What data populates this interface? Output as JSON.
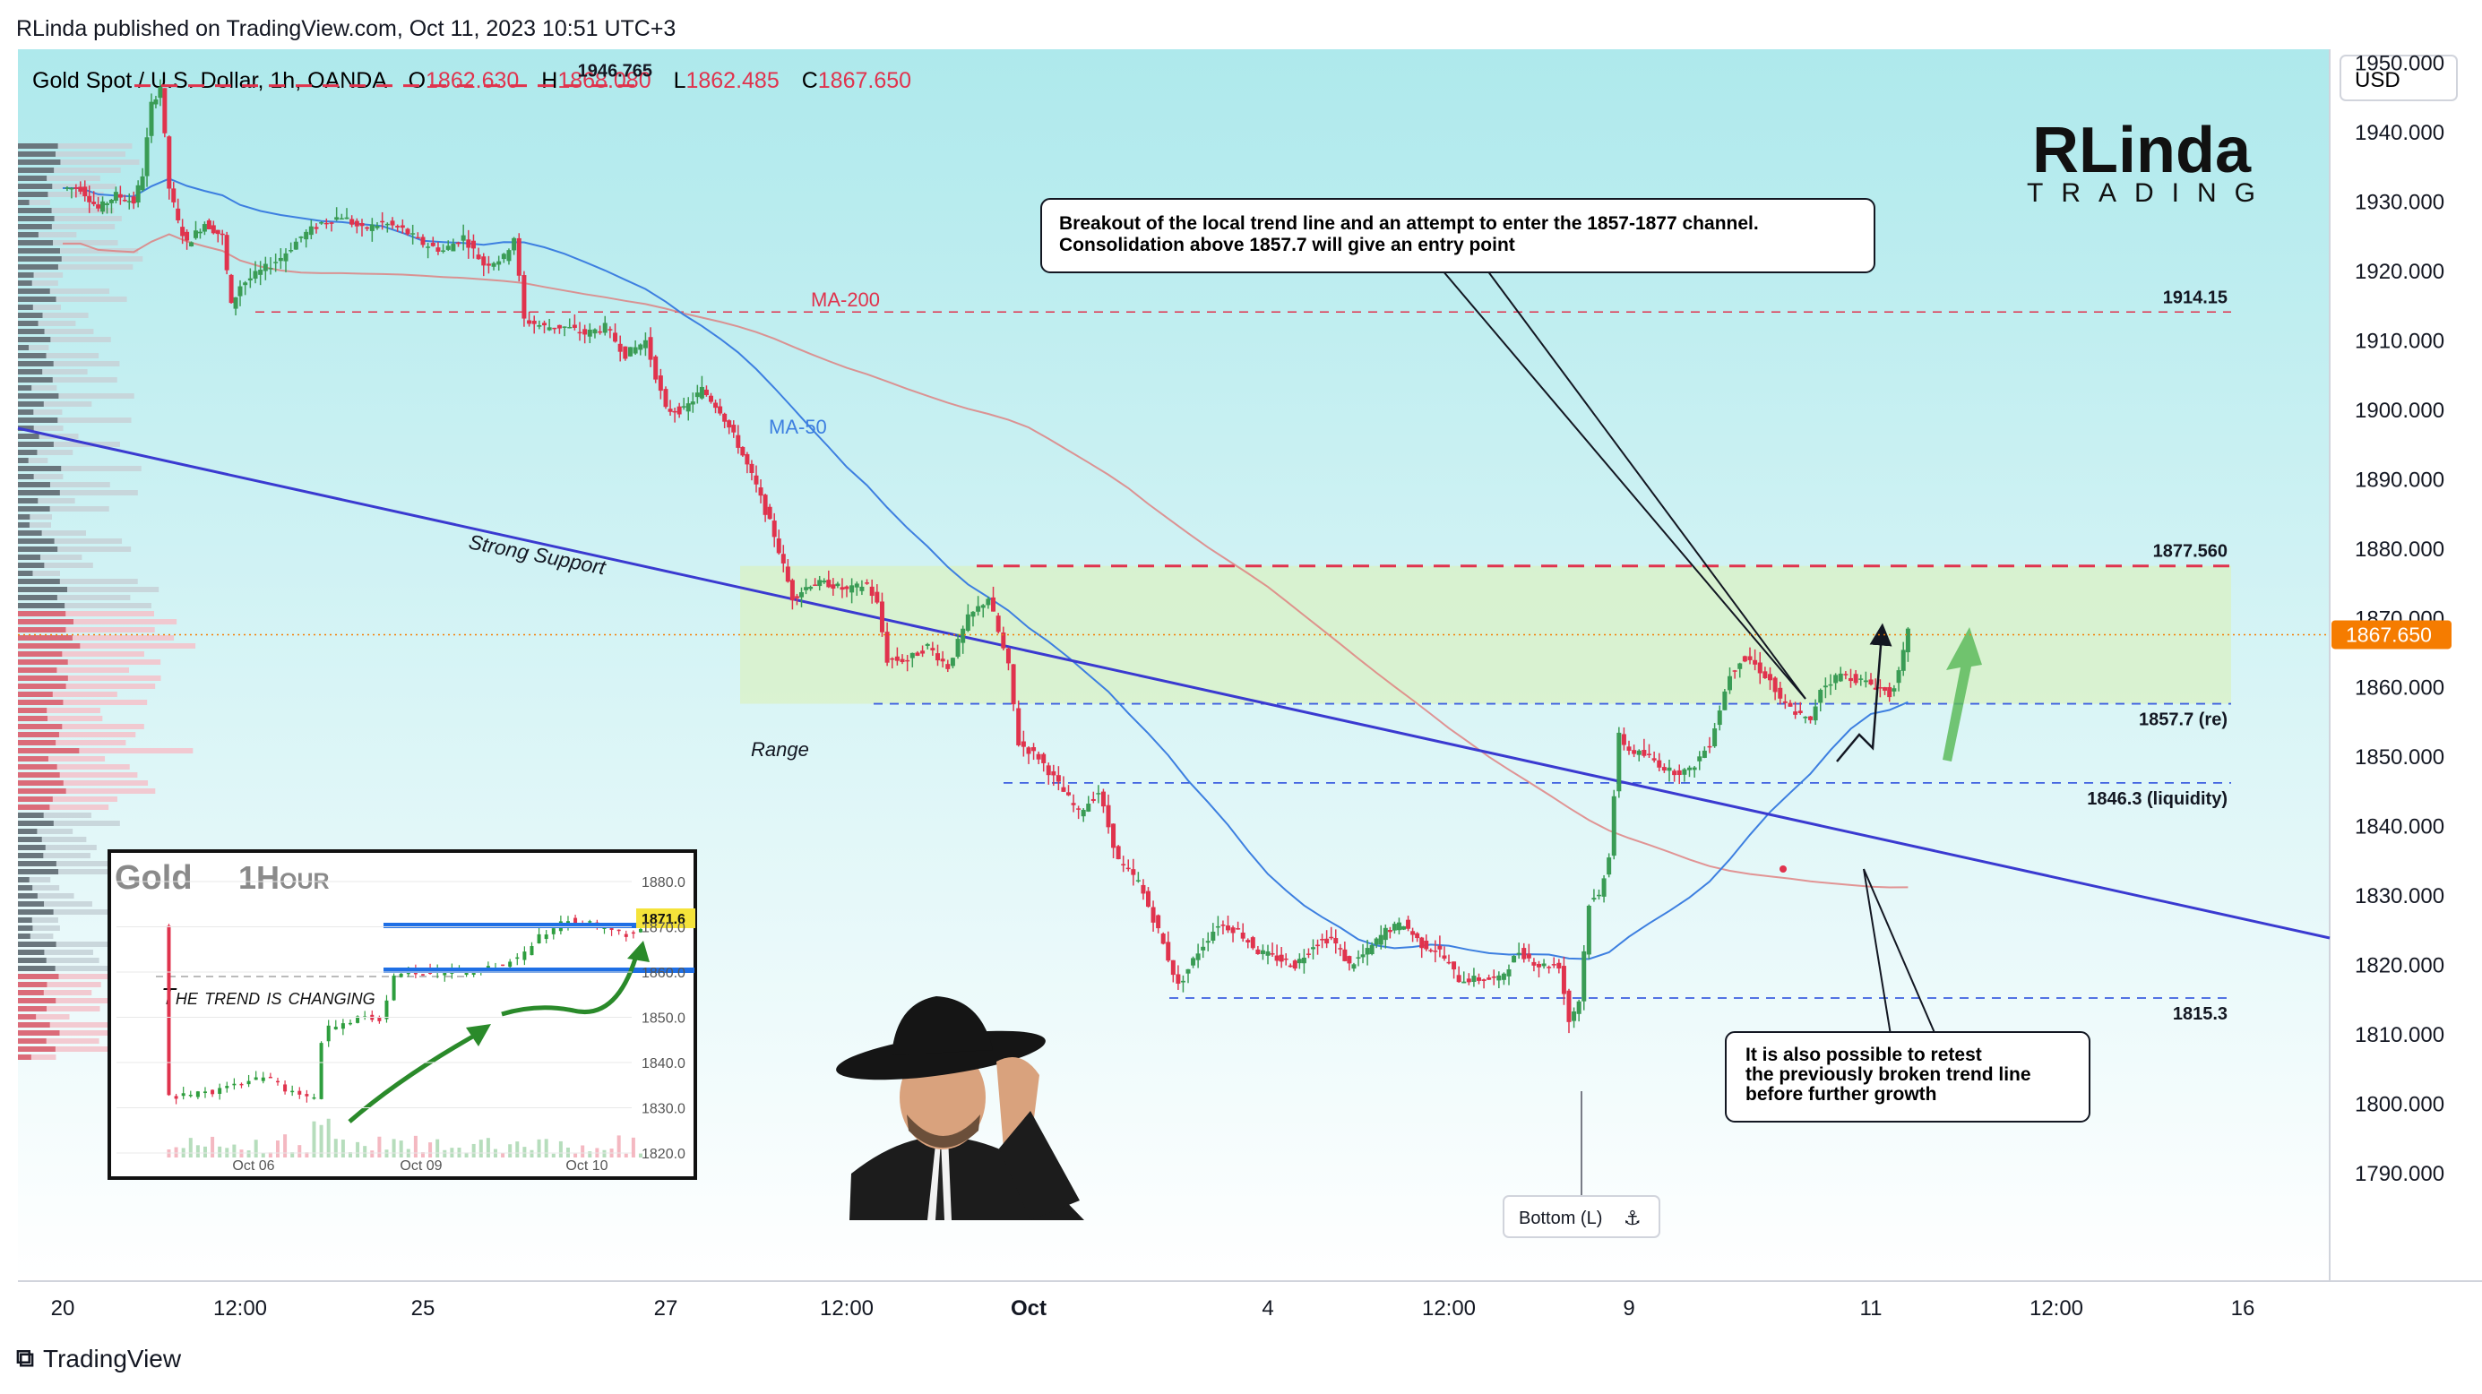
{
  "header": {
    "published": "RLinda published on TradingView.com, Oct 11, 2023 10:51 UTC+3"
  },
  "symbol": {
    "name": "Gold Spot / U.S. Dollar, 1h, OANDA",
    "o_label": "O",
    "o": "1862.630",
    "h_label": "H",
    "h": "1868.080",
    "l_label": "L",
    "l": "1862.485",
    "c_label": "C",
    "c": "1867.650"
  },
  "currency": "USD",
  "brand": {
    "logo_text": "RLinda",
    "logo_sub": "TRADING"
  },
  "footer": {
    "tradingview": "TradingView"
  },
  "colors": {
    "bg_top": "#aee9ec",
    "bg_bottom": "#ffffff",
    "up": "#26a69a",
    "down": "#ef5350",
    "candle_up": "#3a9c55",
    "candle_down": "#e0334d",
    "ma50": "#3d7fe0",
    "ma200": "#e07a7a",
    "trend": "#3a3ad0",
    "price_badge": "#f57c00",
    "range_fill": "#d9f2c4",
    "arrow": "#5dbb5d"
  },
  "chart_data": {
    "type": "candlestick",
    "symbol": "XAUUSD",
    "timeframe": "1h",
    "y_axis": {
      "min": 1785,
      "max": 1955,
      "ticks": [
        "1950.000",
        "1940.000",
        "1930.000",
        "1920.000",
        "1910.000",
        "1900.000",
        "1890.000",
        "1880.000",
        "1870.000",
        "1860.000",
        "1850.000",
        "1840.000",
        "1830.000",
        "1820.000",
        "1810.000",
        "1800.000",
        "1790.000"
      ]
    },
    "x_axis": {
      "ticks": [
        {
          "label": "20",
          "t": 0
        },
        {
          "label": "12:00",
          "t": 20
        },
        {
          "label": "25",
          "t": 38
        },
        {
          "label": "27",
          "t": 62
        },
        {
          "label": "12:00",
          "t": 82
        },
        {
          "label": "Oct",
          "t": 100
        },
        {
          "label": "4",
          "t": 124
        },
        {
          "label": "12:00",
          "t": 144
        },
        {
          "label": "9",
          "t": 162
        },
        {
          "label": "11",
          "t": 186
        },
        {
          "label": "12:00",
          "t": 206
        },
        {
          "label": "16",
          "t": 224
        }
      ]
    },
    "current_price": "1867.650",
    "levels": [
      {
        "price": 1946.765,
        "label": "1946.765",
        "style": "red-dash"
      },
      {
        "price": 1914.15,
        "label": "1914.15",
        "style": "red-dash-thin"
      },
      {
        "price": 1877.56,
        "label": "1877.560",
        "style": "red-dash"
      },
      {
        "price": 1857.7,
        "label": "1857.7 (re)",
        "style": "blue-dash"
      },
      {
        "price": 1846.3,
        "label": "1846.3 (liquidity)",
        "style": "blue-dash"
      },
      {
        "price": 1815.3,
        "label": "1815.3",
        "style": "blue-dash"
      }
    ],
    "range_zone": {
      "low": 1857.7,
      "high": 1877.56,
      "label": "Range"
    },
    "ma_labels": {
      "ma200": "MA-200",
      "ma50": "MA-50"
    },
    "trendline_label": "Strong Support",
    "anchor_price_path": [
      [
        0,
        1932
      ],
      [
        2,
        1932
      ],
      [
        4,
        1929
      ],
      [
        6,
        1931
      ],
      [
        8,
        1930
      ],
      [
        9,
        1934
      ],
      [
        10,
        1944
      ],
      [
        11,
        1946.7
      ],
      [
        12,
        1932
      ],
      [
        13,
        1927
      ],
      [
        14,
        1924
      ],
      [
        16,
        1927
      ],
      [
        18,
        1925
      ],
      [
        19,
        1915
      ],
      [
        20,
        1918
      ],
      [
        22,
        1920
      ],
      [
        24,
        1922
      ],
      [
        26,
        1925
      ],
      [
        28,
        1927
      ],
      [
        30,
        1928
      ],
      [
        32,
        1926
      ],
      [
        34,
        1927
      ],
      [
        36,
        1926
      ],
      [
        38,
        1924
      ],
      [
        40,
        1923
      ],
      [
        42,
        1925
      ],
      [
        44,
        1921
      ],
      [
        46,
        1922
      ],
      [
        47,
        1925
      ],
      [
        48,
        1913
      ],
      [
        50,
        1912
      ],
      [
        52,
        1912
      ],
      [
        54,
        1911
      ],
      [
        56,
        1912
      ],
      [
        58,
        1908
      ],
      [
        60,
        1910
      ],
      [
        62,
        1900
      ],
      [
        64,
        1900
      ],
      [
        66,
        1903
      ],
      [
        68,
        1900
      ],
      [
        70,
        1895
      ],
      [
        72,
        1889
      ],
      [
        74,
        1882
      ],
      [
        76,
        1873
      ],
      [
        78,
        1875
      ],
      [
        80,
        1875
      ],
      [
        82,
        1874
      ],
      [
        84,
        1875
      ],
      [
        85,
        1872
      ],
      [
        86,
        1864
      ],
      [
        88,
        1864
      ],
      [
        90,
        1866
      ],
      [
        92,
        1863
      ],
      [
        94,
        1870
      ],
      [
        96,
        1873
      ],
      [
        97,
        1868
      ],
      [
        98,
        1863
      ],
      [
        99,
        1852
      ],
      [
        101,
        1850
      ],
      [
        103,
        1846
      ],
      [
        105,
        1842
      ],
      [
        107,
        1845
      ],
      [
        109,
        1835
      ],
      [
        111,
        1832
      ],
      [
        113,
        1825
      ],
      [
        115,
        1817
      ],
      [
        117,
        1822
      ],
      [
        119,
        1826
      ],
      [
        121,
        1825
      ],
      [
        123,
        1822
      ],
      [
        125,
        1821
      ],
      [
        127,
        1820
      ],
      [
        129,
        1823
      ],
      [
        131,
        1824
      ],
      [
        133,
        1820
      ],
      [
        135,
        1822
      ],
      [
        137,
        1825
      ],
      [
        139,
        1826
      ],
      [
        141,
        1823
      ],
      [
        143,
        1822
      ],
      [
        145,
        1818
      ],
      [
        147,
        1818
      ],
      [
        149,
        1818
      ],
      [
        151,
        1822
      ],
      [
        153,
        1820
      ],
      [
        155,
        1820
      ],
      [
        156,
        1812
      ],
      [
        157,
        1815
      ],
      [
        158,
        1829
      ],
      [
        159,
        1830
      ],
      [
        160,
        1836
      ],
      [
        161,
        1853
      ],
      [
        162,
        1851
      ],
      [
        164,
        1850
      ],
      [
        166,
        1848
      ],
      [
        168,
        1848
      ],
      [
        170,
        1852
      ],
      [
        172,
        1862
      ],
      [
        173,
        1864
      ],
      [
        174,
        1864
      ],
      [
        176,
        1861
      ],
      [
        177,
        1858
      ],
      [
        179,
        1856
      ],
      [
        180,
        1855
      ],
      [
        181,
        1860
      ],
      [
        183,
        1862
      ],
      [
        185,
        1861
      ],
      [
        187,
        1860
      ],
      [
        188,
        1859
      ],
      [
        189,
        1862
      ],
      [
        190,
        1868
      ]
    ],
    "t_min": 0,
    "t_max": 230,
    "inset": {
      "title": "Gold",
      "subtitle": "1Hour",
      "caption": "The trend is changing",
      "price_tag": "1871.6",
      "y_ticks": [
        "1880.0",
        "1870.0",
        "1860.0",
        "1850.0",
        "1840.0",
        "1830.0",
        "1820.0"
      ],
      "x_ticks": [
        "Oct 06",
        "Oct 09",
        "Oct 10"
      ]
    }
  },
  "annotations": {
    "top_box": "Breakout of the local trend line and an attempt to enter the 1857-1877 channel. Consolidation above 1857.7 will give an entry point",
    "top_box_line1": "Breakout of the local trend line and an attempt to enter the 1857-1877 channel.",
    "top_box_line2": "Consolidation above 1857.7 will give an entry point",
    "bottom_box_line1": "It is also possible to retest",
    "bottom_box_line2": "the previously broken trend line",
    "bottom_box_line3": "before further growth",
    "bottom_marker": "Bottom (L)"
  }
}
